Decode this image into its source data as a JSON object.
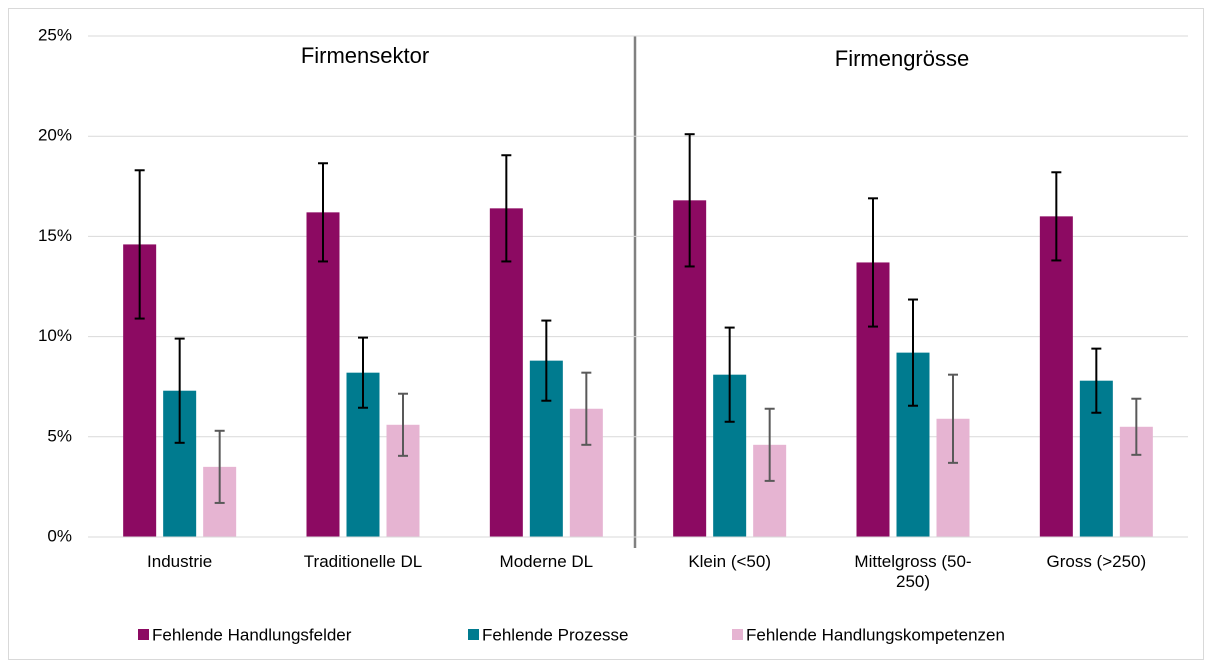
{
  "chart_data": {
    "type": "bar",
    "categories": [
      "Industrie",
      "Traditionelle DL",
      "Moderne DL",
      "Klein (<50)",
      "Mittelgross (50-250)",
      "Gross (>250)"
    ],
    "series": [
      {
        "name": "Fehlende Handlungsfelder",
        "color": "#8c0a62",
        "error_color": "#000000",
        "values": [
          14.6,
          16.2,
          16.4,
          16.8,
          13.7,
          16.0
        ],
        "errors": [
          3.7,
          2.45,
          2.65,
          3.3,
          3.2,
          2.2
        ]
      },
      {
        "name": "Fehlende Prozesse",
        "color": "#007b8f",
        "error_color": "#000000",
        "values": [
          7.3,
          8.2,
          8.8,
          8.1,
          9.2,
          7.8
        ],
        "errors": [
          2.6,
          1.75,
          2.0,
          2.35,
          2.65,
          1.6
        ]
      },
      {
        "name": "Fehlende Handlungskompetenzen",
        "color": "#e6b4d2",
        "error_color": "#595959",
        "values": [
          3.5,
          5.6,
          6.4,
          4.6,
          5.9,
          5.5
        ],
        "errors": [
          1.8,
          1.55,
          1.8,
          1.8,
          2.2,
          1.4
        ]
      }
    ],
    "annotations": [
      "Firmensektor",
      "Firmengrösse"
    ],
    "ylim": [
      0,
      25
    ],
    "yticks": [
      {
        "value": 0,
        "label": "0%"
      },
      {
        "value": 5,
        "label": "5%"
      },
      {
        "value": 10,
        "label": "10%"
      },
      {
        "value": 15,
        "label": "15%"
      },
      {
        "value": 20,
        "label": "20%"
      },
      {
        "value": 25,
        "label": "25%"
      }
    ],
    "grid": true,
    "legend": "bottom"
  }
}
